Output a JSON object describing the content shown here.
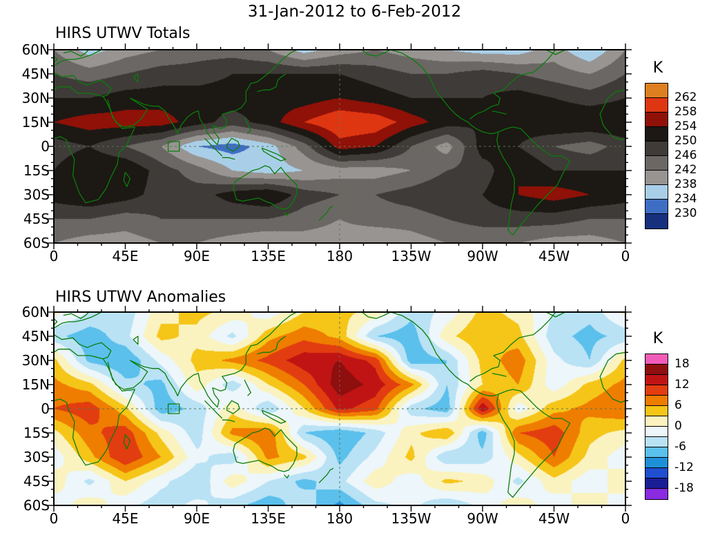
{
  "title": "31-Jan-2012 to 6-Feb-2012",
  "chart_data": [
    {
      "type": "heatmap",
      "title": "HIRS UTWV Totals",
      "units": "K",
      "lat_tick_labels": [
        "60N",
        "45N",
        "30N",
        "15N",
        "0",
        "15S",
        "30S",
        "45S",
        "60S"
      ],
      "lat_tick_values": [
        60,
        45,
        30,
        15,
        0,
        -15,
        -30,
        -45,
        -60
      ],
      "lon_tick_labels": [
        "0",
        "45E",
        "90E",
        "135E",
        "180",
        "135W",
        "90W",
        "45W",
        "0"
      ],
      "lon_tick_values": [
        0,
        45,
        90,
        135,
        180,
        225,
        270,
        315,
        360
      ],
      "lats": [
        60,
        45,
        30,
        15,
        0,
        -15,
        -30,
        -45,
        -60
      ],
      "lons": [
        0,
        22.5,
        45,
        67.5,
        90,
        112.5,
        135,
        157.5,
        180,
        202.5,
        225,
        247.5,
        270,
        292.5,
        315,
        337.5,
        360
      ],
      "values": [
        [
          242,
          236,
          240,
          242,
          244,
          244,
          242,
          236,
          240,
          242,
          240,
          238,
          236,
          236,
          240,
          234,
          242
        ],
        [
          246,
          244,
          246,
          248,
          248,
          250,
          250,
          250,
          250,
          248,
          246,
          246,
          248,
          246,
          244,
          242,
          246
        ],
        [
          250,
          250,
          252,
          252,
          252,
          252,
          252,
          252,
          254,
          252,
          250,
          250,
          250,
          252,
          250,
          248,
          250
        ],
        [
          254,
          256,
          256,
          256,
          252,
          248,
          252,
          258,
          262,
          261,
          256,
          252,
          250,
          252,
          254,
          254,
          254
        ],
        [
          248,
          250,
          246,
          242,
          234,
          232,
          236,
          244,
          256,
          254,
          246,
          240,
          252,
          250,
          246,
          244,
          248
        ],
        [
          250,
          254,
          254,
          248,
          244,
          238,
          236,
          238,
          240,
          240,
          242,
          246,
          248,
          254,
          250,
          250,
          250
        ],
        [
          252,
          254,
          252,
          248,
          248,
          252,
          254,
          248,
          246,
          246,
          248,
          250,
          250,
          254,
          256,
          254,
          252
        ],
        [
          246,
          246,
          244,
          246,
          246,
          246,
          246,
          244,
          242,
          244,
          244,
          246,
          248,
          248,
          248,
          246,
          246
        ],
        [
          242,
          240,
          240,
          242,
          242,
          240,
          238,
          240,
          240,
          238,
          240,
          242,
          242,
          242,
          240,
          240,
          242
        ]
      ],
      "colorbar": {
        "label": "K",
        "levels": [
          262,
          258,
          254,
          250,
          246,
          242,
          238,
          234,
          230
        ],
        "tick_labels": [
          "262",
          "258",
          "254",
          "250",
          "246",
          "242",
          "238",
          "234",
          "230"
        ],
        "tick_values": [
          262,
          258,
          254,
          250,
          246,
          242,
          238,
          234,
          230
        ],
        "colors_high_to_low": [
          "#df8020",
          "#df3612",
          "#8f1108",
          "#1c1814",
          "#3f3b38",
          "#6b6764",
          "#989492",
          "#a9cfe8",
          "#3e6ec4",
          "#16307e"
        ]
      }
    },
    {
      "type": "heatmap",
      "title": "HIRS UTWV Anomalies",
      "units": "K",
      "lat_tick_labels": [
        "60N",
        "45N",
        "30N",
        "15N",
        "0",
        "15S",
        "30S",
        "45S",
        "60S"
      ],
      "lat_tick_values": [
        60,
        45,
        30,
        15,
        0,
        -15,
        -30,
        -45,
        -60
      ],
      "lon_tick_labels": [
        "0",
        "45E",
        "90E",
        "135E",
        "180",
        "135W",
        "90W",
        "45W",
        "0"
      ],
      "lon_tick_values": [
        0,
        45,
        90,
        135,
        180,
        225,
        270,
        315,
        360
      ],
      "lats": [
        60,
        45,
        30,
        15,
        0,
        -15,
        -30,
        -45,
        -60
      ],
      "lons": [
        0,
        22.5,
        45,
        67.5,
        90,
        112.5,
        135,
        157.5,
        180,
        202.5,
        225,
        247.5,
        270,
        292.5,
        315,
        337.5,
        360
      ],
      "values": [
        [
          1,
          -3,
          -5,
          2,
          4,
          2,
          -2,
          3,
          4,
          2,
          -5,
          -2,
          4,
          2,
          -3,
          -5,
          1
        ],
        [
          -5,
          -8,
          -4,
          4,
          2,
          -4,
          5,
          8,
          5,
          -6,
          -8,
          2,
          6,
          4,
          -5,
          -7,
          -5
        ],
        [
          4,
          -7,
          -9,
          -2,
          4,
          7,
          10,
          14,
          15,
          11,
          -8,
          -6,
          4,
          8,
          -2,
          -6,
          4
        ],
        [
          7,
          4,
          -5,
          -7,
          2,
          -5,
          3,
          9,
          17,
          14,
          7,
          -6,
          3,
          6,
          -2,
          4,
          7
        ],
        [
          9,
          11,
          4,
          -8,
          -5,
          2,
          -6,
          3,
          13,
          10,
          -5,
          -8,
          15,
          -2,
          5,
          7,
          9
        ],
        [
          2,
          8,
          11,
          2,
          -5,
          7,
          9,
          -6,
          -9,
          -5,
          2,
          6,
          -8,
          9,
          11,
          4,
          2
        ],
        [
          -2,
          5,
          12,
          6,
          -2,
          -5,
          7,
          4,
          -7,
          -2,
          4,
          -6,
          -5,
          2,
          9,
          2,
          -2
        ],
        [
          2,
          -4,
          3,
          -2,
          -6,
          2,
          -3,
          -7,
          -4,
          2,
          -2,
          4,
          2,
          -4,
          2,
          -2,
          2
        ],
        [
          -2,
          2,
          -2,
          -5,
          -2,
          -5,
          -8,
          -4,
          -10,
          -4,
          -2,
          -6,
          -2,
          2,
          -2,
          2,
          -2
        ]
      ],
      "colorbar": {
        "label": "K",
        "levels": [
          18,
          15,
          12,
          9,
          6,
          3,
          0,
          -3,
          -6,
          -9,
          -12,
          -15,
          -18
        ],
        "tick_labels": [
          "18",
          "12",
          "6",
          "0",
          "-6",
          "-12",
          "-18"
        ],
        "tick_values": [
          18,
          12,
          6,
          0,
          -6,
          -12,
          -18
        ],
        "colors_high_to_low": [
          "#f25cb8",
          "#8f0e0e",
          "#c01414",
          "#e23d10",
          "#ef7d00",
          "#f5c518",
          "#faf3c0",
          "#edf6fa",
          "#b9e2f5",
          "#5bc0ec",
          "#1e90d8",
          "#1f4fd0",
          "#1a1e96",
          "#8a2be2"
        ]
      }
    }
  ],
  "map_style": {
    "coastline_color": "#0a7d0a",
    "graticule_color": "#557755",
    "border_color": "#000000"
  }
}
